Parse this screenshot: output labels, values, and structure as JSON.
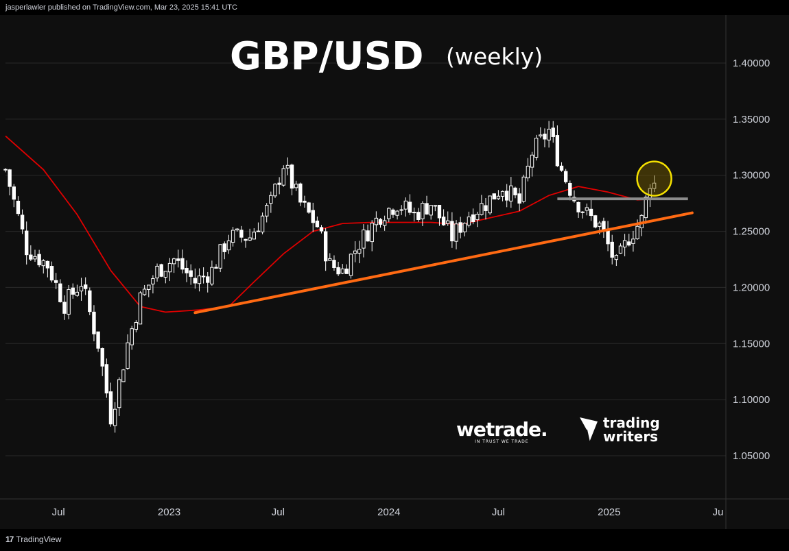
{
  "header": {
    "publisher": "jasperlawler published on TradingView.com, Mar 23, 2025 15:41 UTC"
  },
  "footer": {
    "brand": "TradingView",
    "logo_glyph": "17"
  },
  "title": {
    "main": "GBP/USD",
    "sub": "(weekly)"
  },
  "logos": {
    "wetrade": {
      "name": "wetrade.",
      "tagline": "IN TRUST WE TRADE"
    },
    "trading_writers": {
      "line1": "trading",
      "line2": "writers"
    }
  },
  "colors": {
    "background": "#0f0f0f",
    "grid": "#2a2a2a",
    "candle_up": "#ffffff",
    "candle_down": "#ffffff",
    "ma_line": "#e00000",
    "trendline": "#ff6a13",
    "resistance_line": "#8c8c8c",
    "highlight_circle": "#f5e100"
  },
  "chart_data": {
    "type": "candlestick",
    "timeframe": "weekly",
    "y_ticks": [
      "1.40000",
      "1.35000",
      "1.30000",
      "1.25000",
      "1.20000",
      "1.15000",
      "1.10000",
      "1.05000"
    ],
    "ylim": [
      1.01,
      1.42
    ],
    "x_ticks": [
      {
        "label": "Jul",
        "date": "2022-07-01"
      },
      {
        "label": "2023",
        "date": "2023-01-01"
      },
      {
        "label": "Jul",
        "date": "2023-07-01"
      },
      {
        "label": "2024",
        "date": "2024-01-01"
      },
      {
        "label": "Jul",
        "date": "2024-07-01"
      },
      {
        "label": "2025",
        "date": "2025-01-01"
      },
      {
        "label": "Ju",
        "date": "2025-07-01"
      }
    ],
    "xlim": [
      "2022-04-04",
      "2025-07-14"
    ],
    "close_path": [
      [
        "2022-04-04",
        1.305
      ],
      [
        "2022-05-09",
        1.235
      ],
      [
        "2022-06-13",
        1.22
      ],
      [
        "2022-07-11",
        1.185
      ],
      [
        "2022-08-08",
        1.205
      ],
      [
        "2022-09-05",
        1.15
      ],
      [
        "2022-09-26",
        1.085
      ],
      [
        "2022-10-10",
        1.115
      ],
      [
        "2022-10-24",
        1.15
      ],
      [
        "2022-11-14",
        1.19
      ],
      [
        "2022-12-12",
        1.215
      ],
      [
        "2023-01-09",
        1.225
      ],
      [
        "2023-02-13",
        1.205
      ],
      [
        "2023-03-13",
        1.215
      ],
      [
        "2023-04-10",
        1.245
      ],
      [
        "2023-05-15",
        1.245
      ],
      [
        "2023-06-19",
        1.275
      ],
      [
        "2023-07-10",
        1.31
      ],
      [
        "2023-08-07",
        1.275
      ],
      [
        "2023-09-04",
        1.255
      ],
      [
        "2023-09-25",
        1.22
      ],
      [
        "2023-10-16",
        1.215
      ],
      [
        "2023-11-13",
        1.24
      ],
      [
        "2023-12-18",
        1.265
      ],
      [
        "2024-01-15",
        1.275
      ],
      [
        "2024-02-12",
        1.265
      ],
      [
        "2024-03-11",
        1.275
      ],
      [
        "2024-04-15",
        1.245
      ],
      [
        "2024-05-13",
        1.265
      ],
      [
        "2024-06-10",
        1.275
      ],
      [
        "2024-07-08",
        1.29
      ],
      [
        "2024-08-05",
        1.275
      ],
      [
        "2024-08-26",
        1.32
      ],
      [
        "2024-09-23",
        1.34
      ],
      [
        "2024-10-14",
        1.305
      ],
      [
        "2024-11-04",
        1.28
      ],
      [
        "2024-11-25",
        1.265
      ],
      [
        "2024-12-16",
        1.255
      ],
      [
        "2025-01-13",
        1.22
      ],
      [
        "2025-02-03",
        1.245
      ],
      [
        "2025-02-24",
        1.26
      ],
      [
        "2025-03-10",
        1.295
      ],
      [
        "2025-03-17",
        1.292
      ]
    ],
    "moving_average": [
      [
        "2022-04-04",
        1.335
      ],
      [
        "2022-06-06",
        1.305
      ],
      [
        "2022-08-01",
        1.265
      ],
      [
        "2022-09-26",
        1.215
      ],
      [
        "2022-11-14",
        1.183
      ],
      [
        "2022-12-26",
        1.178
      ],
      [
        "2023-02-20",
        1.18
      ],
      [
        "2023-04-10",
        1.183
      ],
      [
        "2023-05-22",
        1.205
      ],
      [
        "2023-07-10",
        1.23
      ],
      [
        "2023-08-28",
        1.25
      ],
      [
        "2023-10-16",
        1.257
      ],
      [
        "2023-12-04",
        1.258
      ],
      [
        "2024-01-22",
        1.258
      ],
      [
        "2024-03-11",
        1.258
      ],
      [
        "2024-04-29",
        1.256
      ],
      [
        "2024-06-17",
        1.262
      ],
      [
        "2024-08-05",
        1.268
      ],
      [
        "2024-09-23",
        1.282
      ],
      [
        "2024-11-11",
        1.29
      ],
      [
        "2024-12-30",
        1.285
      ],
      [
        "2025-02-17",
        1.278
      ],
      [
        "2025-03-17",
        1.279
      ]
    ],
    "trendline": {
      "start": [
        "2023-02-13",
        1.1775
      ],
      "end": [
        "2025-05-19",
        1.2665
      ]
    },
    "resistance_line": {
      "start": [
        "2024-10-07",
        1.279
      ],
      "end": [
        "2025-05-12",
        1.279
      ]
    },
    "highlight": {
      "center": [
        "2025-03-17",
        1.297
      ]
    }
  }
}
